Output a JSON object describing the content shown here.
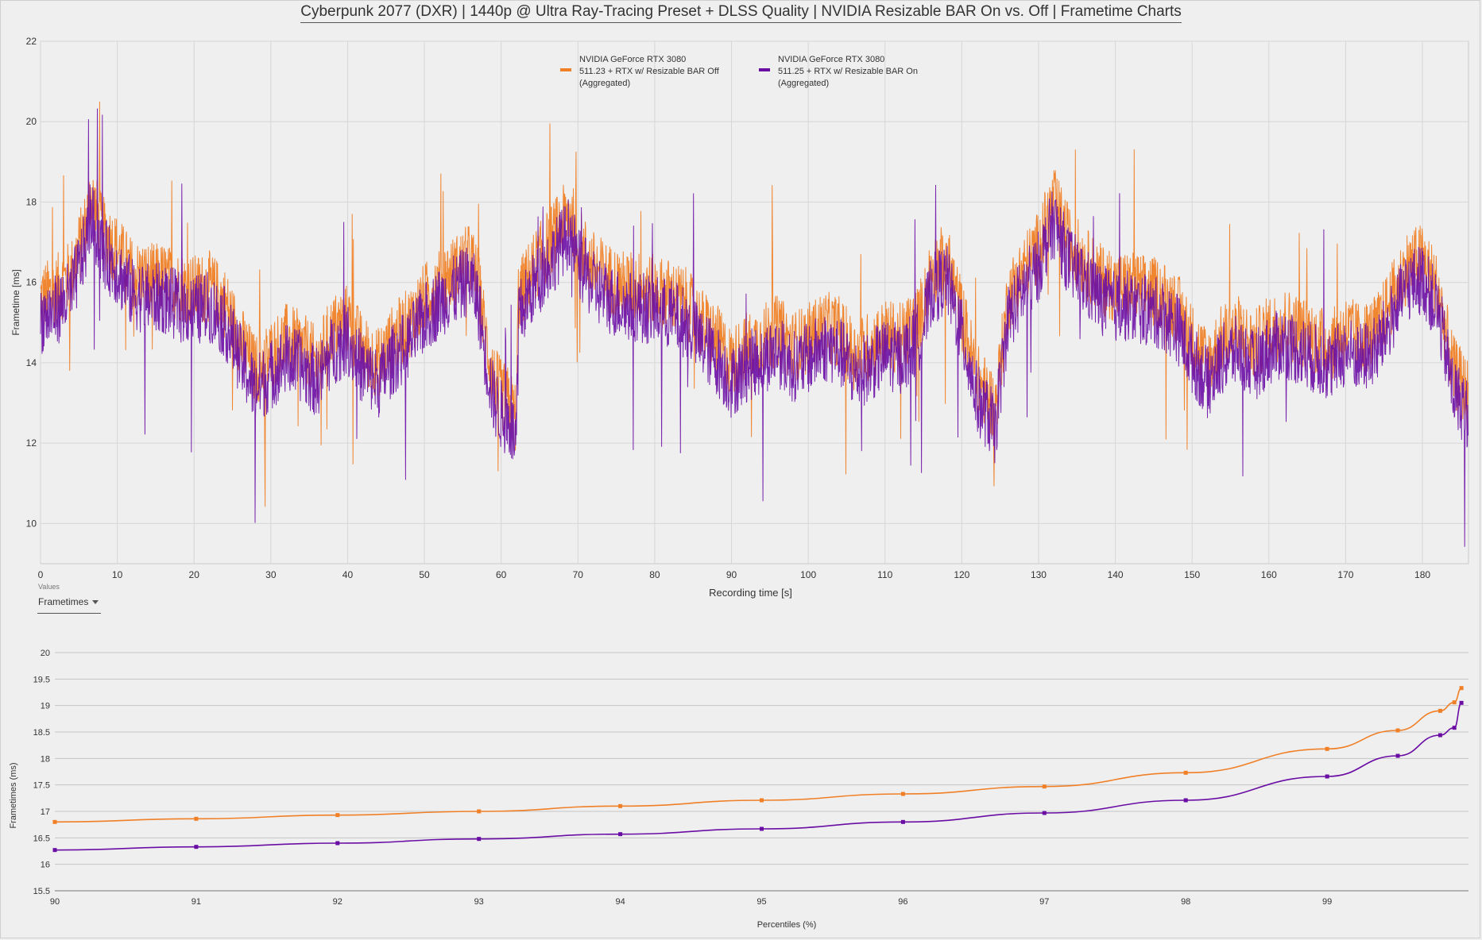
{
  "page_title": "Cyberpunk 2077 (DXR) | 1440p @ Ultra Ray-Tracing Preset + DLSS Quality | NVIDIA Resizable BAR On vs. Off | Frametime Charts",
  "values_control": {
    "caption": "Values",
    "selected": "Frametimes"
  },
  "chart_data": [
    {
      "type": "line",
      "ylabel": "Frametime [ms]",
      "xlabel": "Recording time [s]",
      "xlim": [
        0,
        186
      ],
      "ylim": [
        9,
        22
      ],
      "x_ticks": [
        "0",
        "10",
        "20",
        "30",
        "40",
        "50",
        "60",
        "70",
        "80",
        "90",
        "100",
        "110",
        "120",
        "130",
        "140",
        "150",
        "160",
        "170",
        "180"
      ],
      "y_ticks": [
        "10",
        "12",
        "14",
        "16",
        "18",
        "20",
        "22"
      ],
      "grid": true,
      "legend_position": "top-center",
      "series": [
        {
          "name": "NVIDIA GeForce RTX 3080 511.23 + RTX w/ Resizable BAR Off (Aggregated)",
          "legend_lines": [
            "NVIDIA GeForce RTX 3080",
            "511.23 + RTX w/ Resizable BAR Off",
            "(Aggregated)"
          ],
          "color": "#f07f26",
          "envelope_time_s": [
            0,
            2,
            4,
            6,
            6.5,
            8,
            10,
            12,
            14,
            16,
            18,
            20,
            22,
            24,
            26,
            28,
            30,
            32,
            34,
            36,
            38,
            40,
            42,
            44,
            46,
            48,
            50,
            52,
            54,
            56,
            57,
            58,
            59,
            60,
            61,
            62,
            62.2,
            64,
            66,
            68,
            69,
            70,
            72,
            74,
            76,
            78,
            80,
            82,
            84,
            86,
            88,
            90,
            92,
            94,
            96,
            98,
            100,
            102,
            104,
            106,
            108,
            110,
            112,
            114,
            115,
            116,
            118,
            120,
            122,
            124,
            124.2,
            126,
            128,
            130,
            131,
            132,
            134,
            136,
            138,
            140,
            142,
            144,
            146,
            148,
            150,
            152,
            154,
            156,
            158,
            160,
            162,
            164,
            166,
            168,
            170,
            172,
            174,
            176,
            178,
            180,
            182,
            184,
            186
          ],
          "envelope_center_ms": [
            15.6,
            15.8,
            16.2,
            17.5,
            18.2,
            17.3,
            16.8,
            16.2,
            16.1,
            16.1,
            15.9,
            15.8,
            15.9,
            15.5,
            14.6,
            13.8,
            14.2,
            14.6,
            14.4,
            14.0,
            14.8,
            15.1,
            14.3,
            14.0,
            14.6,
            15.0,
            15.6,
            16.0,
            16.3,
            16.6,
            16.0,
            14.6,
            13.6,
            13.2,
            13.0,
            12.6,
            15.6,
            16.3,
            16.9,
            17.5,
            17.8,
            17.0,
            16.4,
            16.1,
            15.9,
            15.9,
            15.8,
            15.7,
            15.5,
            15.0,
            14.6,
            14.0,
            14.4,
            14.6,
            14.8,
            14.4,
            14.6,
            14.9,
            14.8,
            14.2,
            14.4,
            14.7,
            14.6,
            15.0,
            15.4,
            16.3,
            16.6,
            15.2,
            13.6,
            13.0,
            12.6,
            15.6,
            16.3,
            16.9,
            17.5,
            18.0,
            17.0,
            16.5,
            16.1,
            15.9,
            15.9,
            15.8,
            15.7,
            15.4,
            14.6,
            14.0,
            14.6,
            14.8,
            14.4,
            14.8,
            15.0,
            14.8,
            14.6,
            14.4,
            14.8,
            14.6,
            14.8,
            15.6,
            16.4,
            16.6,
            15.8,
            13.8,
            13.2,
            12.6
          ],
          "values": [
            {
              "percentile": 90,
              "frametime_ms": 16.8
            },
            {
              "percentile": 91,
              "frametime_ms": 16.86
            },
            {
              "percentile": 92,
              "frametime_ms": 16.93
            },
            {
              "percentile": 93,
              "frametime_ms": 17.0
            },
            {
              "percentile": 94,
              "frametime_ms": 17.1
            },
            {
              "percentile": 95,
              "frametime_ms": 17.21
            },
            {
              "percentile": 96,
              "frametime_ms": 17.33
            },
            {
              "percentile": 97,
              "frametime_ms": 17.47
            },
            {
              "percentile": 98,
              "frametime_ms": 17.73
            },
            {
              "percentile": 99,
              "frametime_ms": 18.18
            },
            {
              "percentile": 99.5,
              "frametime_ms": 18.53
            },
            {
              "percentile": 99.8,
              "frametime_ms": 18.9
            },
            {
              "percentile": 99.9,
              "frametime_ms": 19.06
            },
            {
              "percentile": 99.95,
              "frametime_ms": 19.33
            }
          ]
        },
        {
          "name": "NVIDIA GeForce RTX 3080 511.25 + RTX w/ Resizable BAR On (Aggregated)",
          "legend_lines": [
            "NVIDIA GeForce RTX 3080",
            "511.25 + RTX w/ Resizable BAR On",
            "(Aggregated)"
          ],
          "color": "#6a0da4",
          "envelope_time_s": [
            0,
            2,
            4,
            6,
            6.5,
            8,
            10,
            12,
            14,
            16,
            18,
            20,
            22,
            24,
            26,
            28,
            30,
            32,
            34,
            36,
            38,
            40,
            42,
            44,
            46,
            48,
            50,
            52,
            54,
            56,
            57,
            58,
            59,
            60,
            61,
            62,
            62.2,
            64,
            66,
            68,
            69,
            70,
            72,
            74,
            76,
            78,
            80,
            82,
            84,
            86,
            88,
            90,
            92,
            94,
            96,
            98,
            100,
            102,
            104,
            106,
            108,
            110,
            112,
            114,
            115,
            116,
            118,
            120,
            122,
            124,
            124.2,
            126,
            128,
            130,
            131,
            132,
            134,
            136,
            138,
            140,
            142,
            144,
            146,
            148,
            150,
            152,
            154,
            156,
            158,
            160,
            162,
            164,
            166,
            168,
            170,
            172,
            174,
            176,
            178,
            180,
            182,
            184,
            186
          ],
          "envelope_center_ms": [
            15.1,
            15.3,
            15.7,
            17.0,
            17.7,
            16.8,
            16.3,
            15.7,
            15.6,
            15.6,
            15.4,
            15.3,
            15.4,
            15.0,
            14.1,
            13.3,
            13.7,
            14.1,
            13.9,
            13.5,
            14.3,
            14.6,
            13.8,
            13.5,
            14.1,
            14.5,
            15.1,
            15.5,
            15.8,
            16.1,
            15.5,
            14.1,
            13.1,
            12.7,
            12.5,
            12.1,
            15.1,
            15.8,
            16.4,
            17.0,
            17.3,
            16.5,
            15.9,
            15.6,
            15.4,
            15.4,
            15.3,
            15.2,
            15.0,
            14.5,
            14.1,
            13.5,
            13.9,
            14.1,
            14.3,
            13.9,
            14.1,
            14.4,
            14.3,
            13.7,
            13.9,
            14.2,
            14.1,
            14.5,
            14.9,
            15.8,
            16.1,
            14.7,
            13.1,
            12.5,
            12.1,
            15.1,
            15.8,
            16.4,
            17.0,
            17.5,
            16.5,
            16.0,
            15.6,
            15.4,
            15.4,
            15.3,
            15.2,
            14.9,
            14.1,
            13.5,
            14.1,
            14.3,
            13.9,
            14.3,
            14.5,
            14.3,
            14.1,
            13.9,
            14.3,
            14.1,
            14.3,
            15.1,
            15.9,
            16.1,
            15.3,
            13.3,
            12.7,
            12.1
          ],
          "values": [
            {
              "percentile": 90,
              "frametime_ms": 16.27
            },
            {
              "percentile": 91,
              "frametime_ms": 16.33
            },
            {
              "percentile": 92,
              "frametime_ms": 16.4
            },
            {
              "percentile": 93,
              "frametime_ms": 16.48
            },
            {
              "percentile": 94,
              "frametime_ms": 16.57
            },
            {
              "percentile": 95,
              "frametime_ms": 16.67
            },
            {
              "percentile": 96,
              "frametime_ms": 16.8
            },
            {
              "percentile": 97,
              "frametime_ms": 16.97
            },
            {
              "percentile": 98,
              "frametime_ms": 17.21
            },
            {
              "percentile": 99,
              "frametime_ms": 17.66
            },
            {
              "percentile": 99.5,
              "frametime_ms": 18.05
            },
            {
              "percentile": 99.8,
              "frametime_ms": 18.44
            },
            {
              "percentile": 99.9,
              "frametime_ms": 18.58
            },
            {
              "percentile": 99.95,
              "frametime_ms": 19.05
            }
          ]
        }
      ]
    },
    {
      "type": "line",
      "ylabel": "Frametimes (ms)",
      "xlabel": "Percentiles (%)",
      "xlim": [
        90,
        100
      ],
      "ylim": [
        15.5,
        20
      ],
      "x_ticks": [
        "90",
        "91",
        "92",
        "93",
        "94",
        "95",
        "96",
        "97",
        "98",
        "99"
      ],
      "y_ticks": [
        "15.5",
        "16",
        "16.5",
        "17",
        "17.5",
        "18",
        "18.5",
        "19",
        "19.5",
        "20"
      ],
      "grid": true,
      "series_ref": "same series as frametime chart (percentile values)"
    }
  ]
}
